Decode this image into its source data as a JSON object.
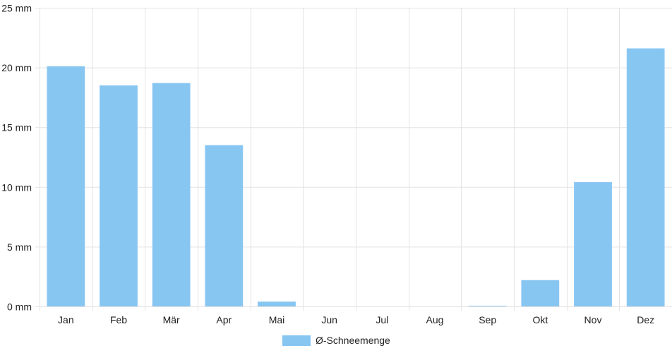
{
  "chart_data": {
    "type": "bar",
    "categories": [
      "Jan",
      "Feb",
      "Mär",
      "Apr",
      "Mai",
      "Jun",
      "Jul",
      "Aug",
      "Sep",
      "Okt",
      "Nov",
      "Dez"
    ],
    "series": [
      {
        "name": "Ø-Schneemenge",
        "values": [
          20.1,
          18.5,
          18.7,
          13.5,
          0.4,
          0,
          0,
          0,
          0.05,
          2.2,
          10.4,
          21.6
        ]
      }
    ],
    "y_ticks": [
      "0 mm",
      "5 mm",
      "10 mm",
      "15 mm",
      "20 mm",
      "25 mm"
    ],
    "ylim": [
      0,
      25
    ],
    "ytick_step": 5,
    "grid": true,
    "legend_position": "bottom-center",
    "colors": {
      "bar": "#88c6f2",
      "grid": "#e3e3e3",
      "text": "#222222"
    }
  }
}
